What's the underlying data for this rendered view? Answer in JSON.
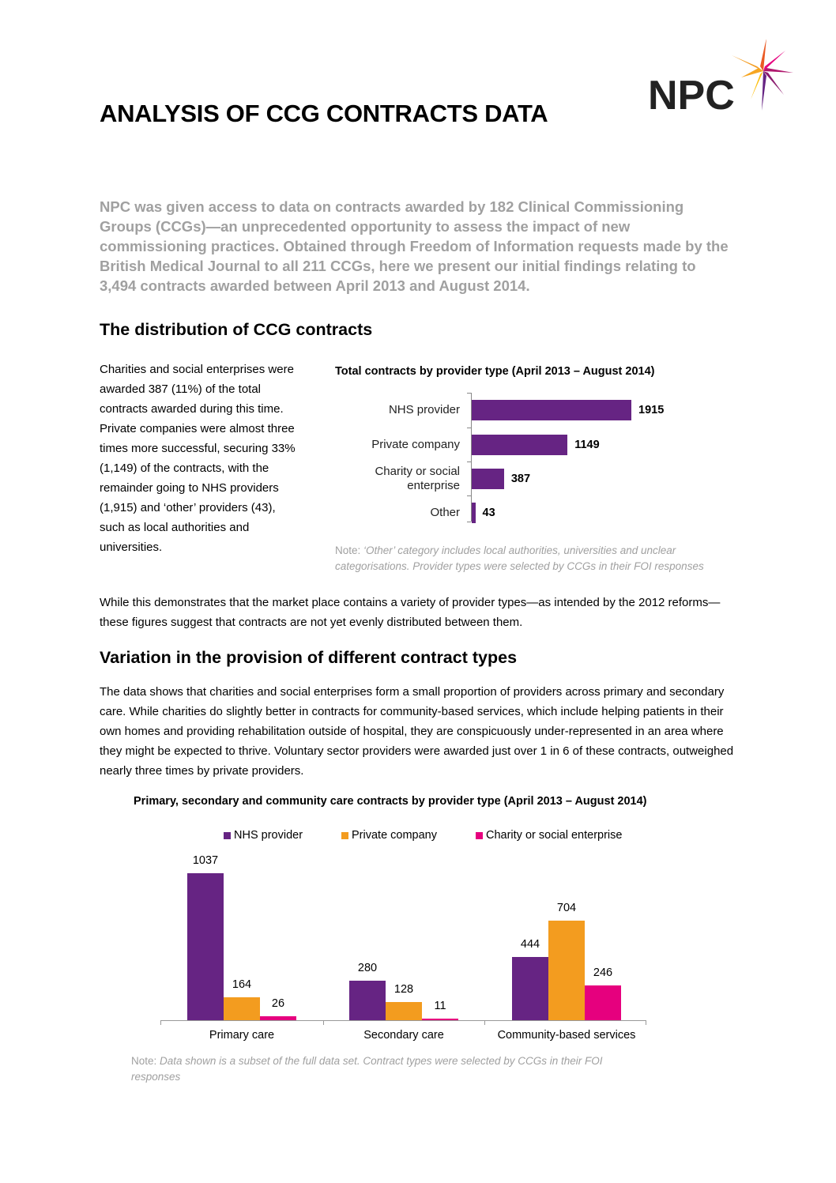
{
  "header": {
    "title": "ANALYSIS OF CCG CONTRACTS DATA",
    "logo_text": "NPC"
  },
  "lead": "NPC was given access to data on contracts awarded by 182 Clinical Commissioning Groups (CCGs)—an unprecedented opportunity to assess the impact of new commissioning practices. Obtained through Freedom of Information requests made by the British Medical Journal to all 211 CCGs, here we present our initial findings relating to 3,494 contracts awarded between April 2013 and August 2014.",
  "section1": {
    "heading": "The distribution of CCG contracts",
    "side_text": "Charities and social enterprises were awarded 387 (11%) of the total contracts awarded during this time. Private companies were almost three times more successful, securing 33% (1,149) of the contracts, with the remainder going to NHS providers (1,915) and ‘other’ providers (43), such as local authorities and universities.",
    "after_text": "While this demonstrates that the market place contains a variety of provider types—as intended by the 2012 reforms—these figures suggest that contracts are not yet evenly distributed between them.",
    "note_label": "Note: ",
    "note_text": "‘Other’ category includes local authorities, universities and unclear categorisations. Provider types were selected by CCGs in their FOI responses"
  },
  "section2": {
    "heading": "Variation in the provision of different contract types",
    "text": "The data shows that charities and social enterprises form a small proportion of providers across primary and secondary care. While charities do slightly better in contracts for community-based services, which include helping patients in their own homes and providing rehabilitation outside of hospital, they are conspicuously under-represented in an area where they might be expected to thrive. Voluntary sector providers were awarded just over 1 in 6 of these contracts, outweighed nearly three times by private providers.",
    "note_label": "Note: ",
    "note_text": "Data shown is a subset of the full data set. Contract types were selected by CCGs in their FOI responses"
  },
  "chart_data": [
    {
      "type": "bar",
      "orientation": "horizontal",
      "title": "Total contracts by provider type (April 2013 – August 2014)",
      "categories": [
        "NHS provider",
        "Private company",
        "Charity or social enterprise",
        "Other"
      ],
      "values": [
        1915,
        1149,
        387,
        43
      ],
      "color": "#662483",
      "grid": false,
      "xlim": [
        0,
        2000
      ]
    },
    {
      "type": "bar",
      "orientation": "vertical",
      "title": "Primary, secondary and community care contracts by provider type (April 2013 – August 2014)",
      "categories": [
        "Primary care",
        "Secondary care",
        "Community-based services"
      ],
      "series": [
        {
          "name": "NHS provider",
          "values": [
            1037,
            280,
            444
          ],
          "color": "#662483"
        },
        {
          "name": "Private company",
          "values": [
            164,
            128,
            704
          ],
          "color": "#f39c1f"
        },
        {
          "name": "Charity or social enterprise",
          "values": [
            26,
            11,
            246
          ],
          "color": "#e6007e"
        }
      ],
      "legend": "top",
      "grid": false,
      "ylim": [
        0,
        1100
      ]
    }
  ]
}
